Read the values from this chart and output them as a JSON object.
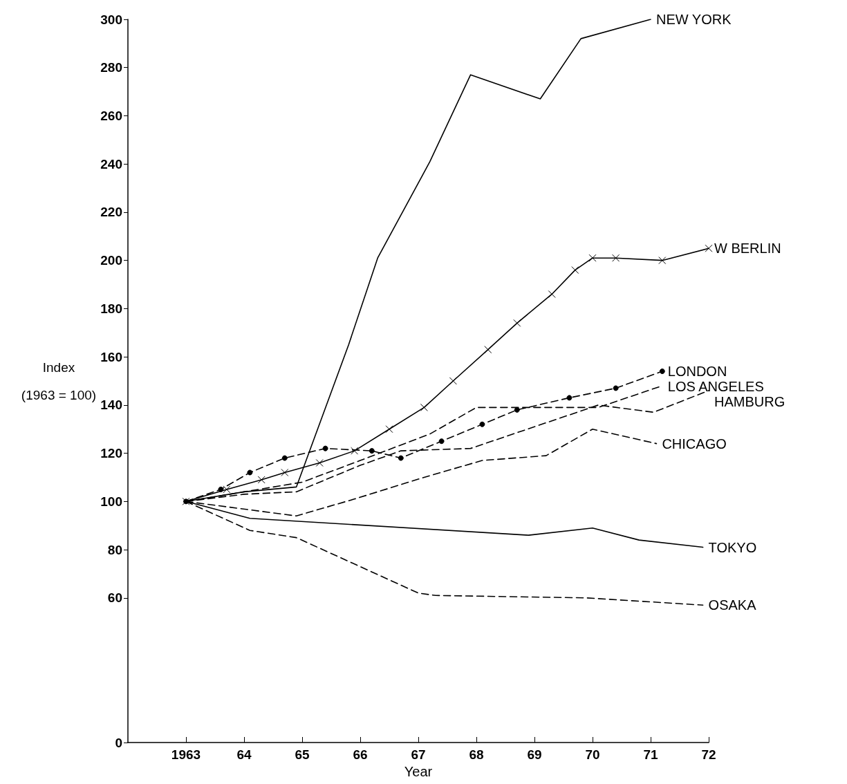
{
  "chart_data": {
    "type": "line",
    "xlabel": "Year",
    "ylabel": "Index\n(1963 = 100)",
    "xlim": [
      1962,
      1972
    ],
    "xticks": [
      {
        "value": 1963,
        "label": "1963"
      },
      {
        "value": 1964,
        "label": "64"
      },
      {
        "value": 1965,
        "label": "65"
      },
      {
        "value": 1966,
        "label": "66"
      },
      {
        "value": 1967,
        "label": "67"
      },
      {
        "value": 1968,
        "label": "68"
      },
      {
        "value": 1969,
        "label": "69"
      },
      {
        "value": 1970,
        "label": "70"
      },
      {
        "value": 1971,
        "label": "71"
      },
      {
        "value": 1972,
        "label": "72"
      }
    ],
    "ylim": [
      0,
      300
    ],
    "yticks": [
      0,
      60,
      80,
      100,
      120,
      140,
      160,
      180,
      200,
      220,
      240,
      260,
      280,
      300
    ],
    "grid": false,
    "legend": false,
    "marker": "none",
    "series": [
      {
        "name": "NEW YORK",
        "color": "#000000",
        "line_style": "solid",
        "x": [
          1963,
          1964,
          1964.9,
          1965.8,
          1966.3,
          1967.2,
          1967.9,
          1969.1,
          1969.8,
          1971
        ],
        "values": [
          100,
          104,
          106,
          165,
          201,
          241,
          277,
          267,
          292,
          300
        ]
      },
      {
        "name": "W BERLIN",
        "color": "#000000",
        "line_style": "solid",
        "marker": "cross",
        "x": [
          1963,
          1963.7,
          1964.3,
          1964.7,
          1965.3,
          1965.9,
          1966.5,
          1967.1,
          1967.6,
          1968.2,
          1968.7,
          1969.3,
          1969.7,
          1970,
          1970.4,
          1971.2,
          1972
        ],
        "values": [
          100,
          105,
          109,
          112,
          116,
          121,
          130,
          139,
          150,
          163,
          174,
          186,
          196,
          201,
          201,
          200,
          205
        ]
      },
      {
        "name": "LONDON",
        "color": "#000000",
        "line_style": "dashed",
        "marker": "circle",
        "x": [
          1963,
          1963.6,
          1964.1,
          1964.7,
          1965.4,
          1966.2,
          1966.7,
          1967.4,
          1968.1,
          1968.7,
          1969.6,
          1970.4,
          1971.2
        ],
        "values": [
          100,
          105,
          112,
          118,
          122,
          121,
          118,
          125,
          132,
          138,
          143,
          147,
          154
        ]
      },
      {
        "name": "LOS ANGELES",
        "color": "#000000",
        "line_style": "dashed",
        "x": [
          1963,
          1964,
          1965,
          1966,
          1967.2,
          1968,
          1970.1,
          1971.2
        ],
        "values": [
          100,
          104,
          108,
          117,
          128,
          139,
          139,
          148
        ]
      },
      {
        "name": "HAMBURG",
        "color": "#000000",
        "line_style": "dashed",
        "x": [
          1963,
          1964,
          1964.9,
          1966,
          1966.7,
          1967.9,
          1970.1,
          1971.05,
          1972
        ],
        "values": [
          100,
          103,
          104,
          115,
          121,
          122,
          140,
          137,
          146
        ]
      },
      {
        "name": "CHICAGO",
        "color": "#000000",
        "line_style": "dashed",
        "x": [
          1963,
          1964.9,
          1965.9,
          1967.1,
          1968.1,
          1969.2,
          1970,
          1971.1
        ],
        "values": [
          100,
          94,
          101,
          110,
          117,
          119,
          130,
          124
        ]
      },
      {
        "name": "TOKYO",
        "color": "#000000",
        "line_style": "solid",
        "x": [
          1963,
          1964.1,
          1968.9,
          1970,
          1970.8,
          1971.9
        ],
        "values": [
          100,
          93,
          86,
          89,
          84,
          81
        ]
      },
      {
        "name": "OSAKA",
        "color": "#000000",
        "line_style": "dashed",
        "x": [
          1963,
          1964.1,
          1964.9,
          1967,
          1967.3,
          1969.9,
          1971.9
        ],
        "values": [
          100,
          88,
          85,
          62,
          61,
          60,
          57
        ]
      }
    ]
  }
}
